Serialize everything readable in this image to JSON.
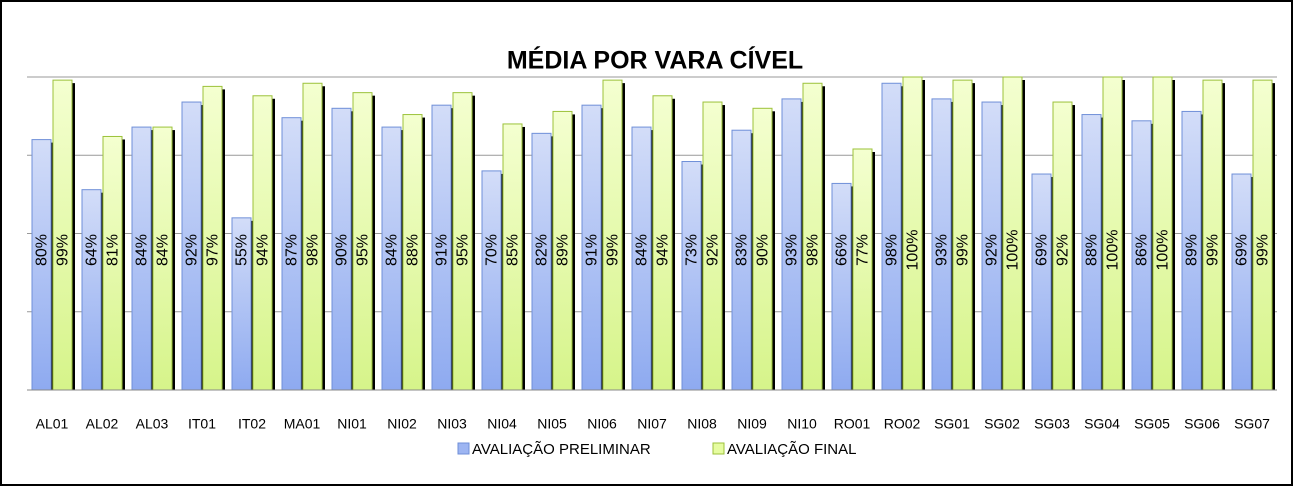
{
  "chart_data": {
    "type": "bar",
    "title": "MÉDIA POR VARA CÍVEL",
    "categories": [
      "AL01",
      "AL02",
      "AL03",
      "IT01",
      "IT02",
      "MA01",
      "NI01",
      "NI02",
      "NI03",
      "NI04",
      "NI05",
      "NI06",
      "NI07",
      "NI08",
      "NI09",
      "NI10",
      "RO01",
      "RO02",
      "SG01",
      "SG02",
      "SG03",
      "SG04",
      "SG05",
      "SG06",
      "SG07"
    ],
    "series": [
      {
        "name": "AVALIAÇÃO PRELIMINAR",
        "color": "#9db5f2",
        "values": [
          80,
          64,
          84,
          92,
          55,
          87,
          90,
          84,
          91,
          70,
          82,
          91,
          84,
          73,
          83,
          93,
          66,
          98,
          93,
          92,
          69,
          88,
          86,
          89,
          69
        ],
        "value_labels": [
          "80%",
          "64%",
          "84%",
          "92%",
          "55%",
          "87%",
          "90%",
          "84%",
          "91%",
          "70%",
          "82%",
          "91%",
          "84%",
          "73%",
          "83%",
          "93%",
          "66%",
          "98%",
          "93%",
          "92%",
          "69%",
          "88%",
          "86%",
          "89%",
          "69%"
        ]
      },
      {
        "name": "AVALIAÇÃO FINAL",
        "color": "#e6fca0",
        "values": [
          99,
          81,
          84,
          97,
          94,
          98,
          95,
          88,
          95,
          85,
          89,
          99,
          94,
          92,
          90,
          98,
          77,
          100,
          99,
          100,
          92,
          100,
          100,
          99,
          99
        ],
        "value_labels": [
          "99%",
          "81%",
          "84%",
          "97%",
          "94%",
          "98%",
          "95%",
          "88%",
          "95%",
          "85%",
          "89%",
          "99%",
          "94%",
          "92%",
          "90%",
          "98%",
          "77%",
          "100%",
          "99%",
          "100%",
          "92%",
          "100%",
          "100%",
          "99%",
          "99%"
        ]
      }
    ],
    "ylim": [
      0,
      100
    ],
    "yticks": [
      0,
      25,
      50,
      75,
      100
    ],
    "grid": true,
    "legend": "bottom"
  }
}
